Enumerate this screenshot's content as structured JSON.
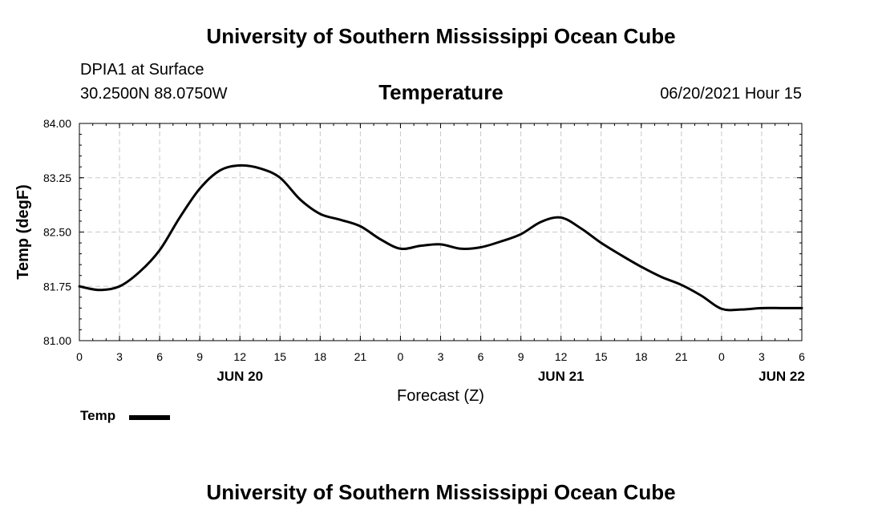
{
  "header": {
    "main_title": "University of Southern Mississippi Ocean Cube",
    "station": "DPIA1 at Surface",
    "coords": "30.2500N  88.0750W",
    "timestamp": "06/20/2021 Hour 15"
  },
  "footer": {
    "main_title": "University of Southern Mississippi Ocean Cube"
  },
  "chart_data": {
    "type": "line",
    "title": "Temperature",
    "xlabel": "Forecast (Z)",
    "ylabel": "Temp (degF)",
    "ylim": [
      81.0,
      84.0
    ],
    "xlim": [
      0,
      54
    ],
    "y_ticks": [
      "81.00",
      "81.75",
      "82.50",
      "83.25",
      "84.00"
    ],
    "x_tick_labels": [
      "0",
      "3",
      "6",
      "9",
      "12",
      "15",
      "18",
      "21",
      "0",
      "3",
      "6",
      "9",
      "12",
      "15",
      "18",
      "21",
      "0",
      "3",
      "6"
    ],
    "date_labels": [
      {
        "label": "JUN 20",
        "hour": 12
      },
      {
        "label": "JUN 21",
        "hour": 36
      },
      {
        "label": "JUN 22",
        "hour": 52.5
      }
    ],
    "grid": true,
    "legend": {
      "position": "bottom-left",
      "entries": [
        "Temp"
      ]
    },
    "series": [
      {
        "name": "Temp",
        "color": "#000000",
        "x": [
          0,
          1.5,
          3,
          4.5,
          6,
          7.5,
          9,
          10.5,
          12,
          13.5,
          15,
          16.5,
          18,
          19.5,
          21,
          22.5,
          24,
          25.5,
          27,
          28.5,
          30,
          31.5,
          33,
          34.5,
          36,
          37.5,
          39,
          40.5,
          42,
          43.5,
          45,
          46.5,
          48,
          49.5,
          51,
          52.5,
          54
        ],
        "values": [
          81.75,
          81.7,
          81.75,
          81.95,
          82.25,
          82.7,
          83.1,
          83.35,
          83.42,
          83.38,
          83.25,
          82.95,
          82.75,
          82.67,
          82.58,
          82.4,
          82.27,
          82.31,
          82.33,
          82.27,
          82.29,
          82.37,
          82.47,
          82.64,
          82.7,
          82.55,
          82.35,
          82.18,
          82.02,
          81.88,
          81.77,
          81.62,
          81.44,
          81.43,
          81.45,
          81.45,
          81.45
        ]
      }
    ]
  }
}
